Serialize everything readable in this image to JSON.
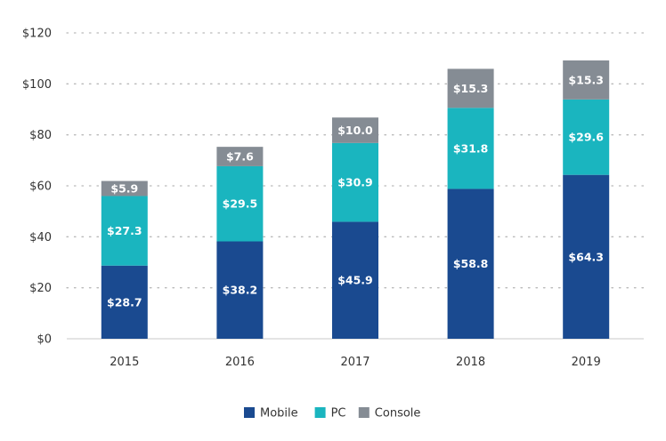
{
  "chart_data": {
    "type": "bar",
    "stacked": true,
    "categories": [
      "2015",
      "2016",
      "2017",
      "2018",
      "2019"
    ],
    "series": [
      {
        "name": "Mobile",
        "color": "#1a4a90",
        "values": [
          28.7,
          38.2,
          45.9,
          58.8,
          64.3
        ],
        "labels": [
          "$28.7",
          "$38.2",
          "$45.9",
          "$58.8",
          "$64.3"
        ]
      },
      {
        "name": "PC",
        "color": "#1ab5bf",
        "values": [
          27.3,
          29.5,
          30.9,
          31.8,
          29.6
        ],
        "labels": [
          "$27.3",
          "$29.5",
          "$30.9",
          "$31.8",
          "$29.6"
        ]
      },
      {
        "name": "Console",
        "color": "#858c94",
        "values": [
          5.9,
          7.6,
          10.0,
          15.3,
          15.3
        ],
        "labels": [
          "$5.9",
          "$7.6",
          "$10.0",
          "$15.3",
          "$15.3"
        ]
      }
    ],
    "ylim": [
      0,
      120
    ],
    "yticks": [
      0,
      20,
      40,
      60,
      80,
      100,
      120
    ],
    "ytick_labels": [
      "$0",
      "$20",
      "$40",
      "$60",
      "$80",
      "$100",
      "$120"
    ],
    "grid": true,
    "legend": "bottom-center"
  }
}
